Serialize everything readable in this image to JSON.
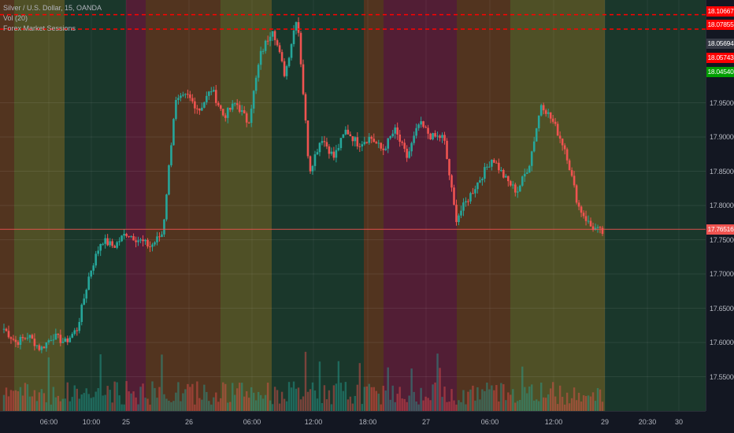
{
  "legend": {
    "symbol_line": "Silver / U.S. Dollar, 15, OANDA",
    "volume_indicator": "Vol (20)",
    "session_indicator": "Forex Market Sessions"
  },
  "price_axis": {
    "ticks": [
      "17.95000",
      "17.90000",
      "17.85000",
      "17.80000",
      "17.75000",
      "17.70000",
      "17.65000",
      "17.60000",
      "17.55000"
    ],
    "tags": [
      {
        "text": "18.10667",
        "color": "#ff0000"
      },
      {
        "text": "18.07855",
        "color": "#ff0000"
      },
      {
        "text": "18.05694",
        "color": "#363a45"
      },
      {
        "text": "18.05743",
        "color": "#ff0000"
      },
      {
        "text": "18.04540",
        "color": "#00a000"
      },
      {
        "text": "17.76516",
        "color": "#ef5350"
      }
    ]
  },
  "time_axis": {
    "labels": [
      "06:00",
      "10:00",
      "25",
      "26",
      "06:00",
      "12:00",
      "18:00",
      "27",
      "06:00",
      "12:00",
      "29",
      "20:30",
      "30"
    ]
  },
  "colors": {
    "up": "#26a69a",
    "down": "#ef5350",
    "volume_up": "#26a69a",
    "volume_down": "#ef5350",
    "session_olive": "#5a5a27",
    "session_brown": "#5e3a1f",
    "session_green": "#1c3d2d",
    "session_magenta": "#5e2038",
    "dashed_level": "#ff0000",
    "current_price_line": "#ef5350"
  },
  "chart_data": {
    "type": "candlestick",
    "ylim": [
      17.5,
      18.1
    ],
    "sessions": [
      "brown",
      "olive",
      "green",
      "magenta",
      "brown",
      "olive",
      "green",
      "brown",
      "magenta",
      "brown",
      "olive",
      "green",
      "none"
    ],
    "dashed_levels": [
      18.10667,
      18.07855,
      18.05743
    ],
    "current_price": 17.76516,
    "close_path": [
      17.62,
      17.6,
      17.61,
      17.59,
      17.61,
      17.6,
      17.62,
      17.7,
      17.75,
      17.74,
      17.76,
      17.75,
      17.74,
      17.76,
      17.95,
      17.96,
      17.94,
      17.97,
      17.93,
      17.95,
      17.92,
      18.02,
      18.06,
      17.99,
      18.08,
      17.85,
      17.9,
      17.87,
      17.91,
      17.89,
      17.9,
      17.88,
      17.91,
      17.87,
      17.92,
      17.9,
      17.9,
      17.78,
      17.81,
      17.84,
      17.87,
      17.84,
      17.82,
      17.86,
      17.95,
      17.92,
      17.88,
      17.8,
      17.77,
      17.76
    ]
  }
}
